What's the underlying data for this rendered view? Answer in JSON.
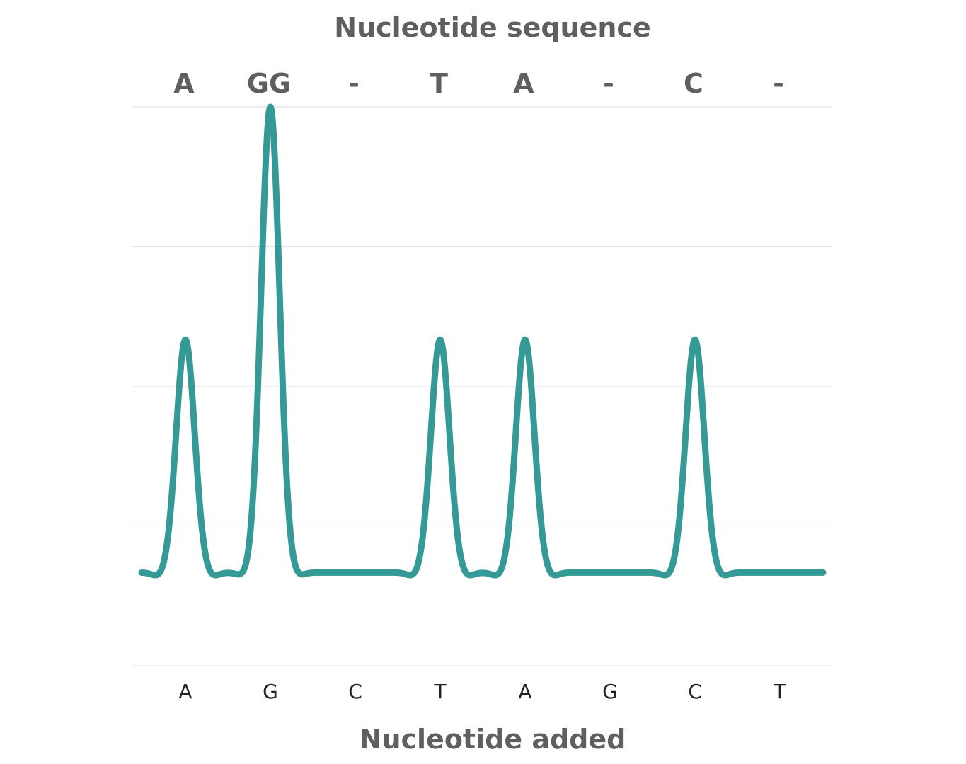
{
  "chart_data": {
    "type": "line",
    "title": "Nucleotide sequence",
    "xlabel": "Nucleotide added",
    "ylabel": "",
    "categories": [
      "A",
      "G",
      "C",
      "T",
      "A",
      "G",
      "C",
      "T"
    ],
    "sequence_labels": [
      "A",
      "GG",
      "-",
      "T",
      "A",
      "-",
      "C",
      "-"
    ],
    "series": [
      {
        "values": [
          1,
          2,
          0,
          1,
          1,
          0,
          1,
          0
        ]
      }
    ],
    "ylim": [
      -0.4,
      2.0
    ],
    "grid": true,
    "legend": "none",
    "line_color": "#359a96"
  }
}
